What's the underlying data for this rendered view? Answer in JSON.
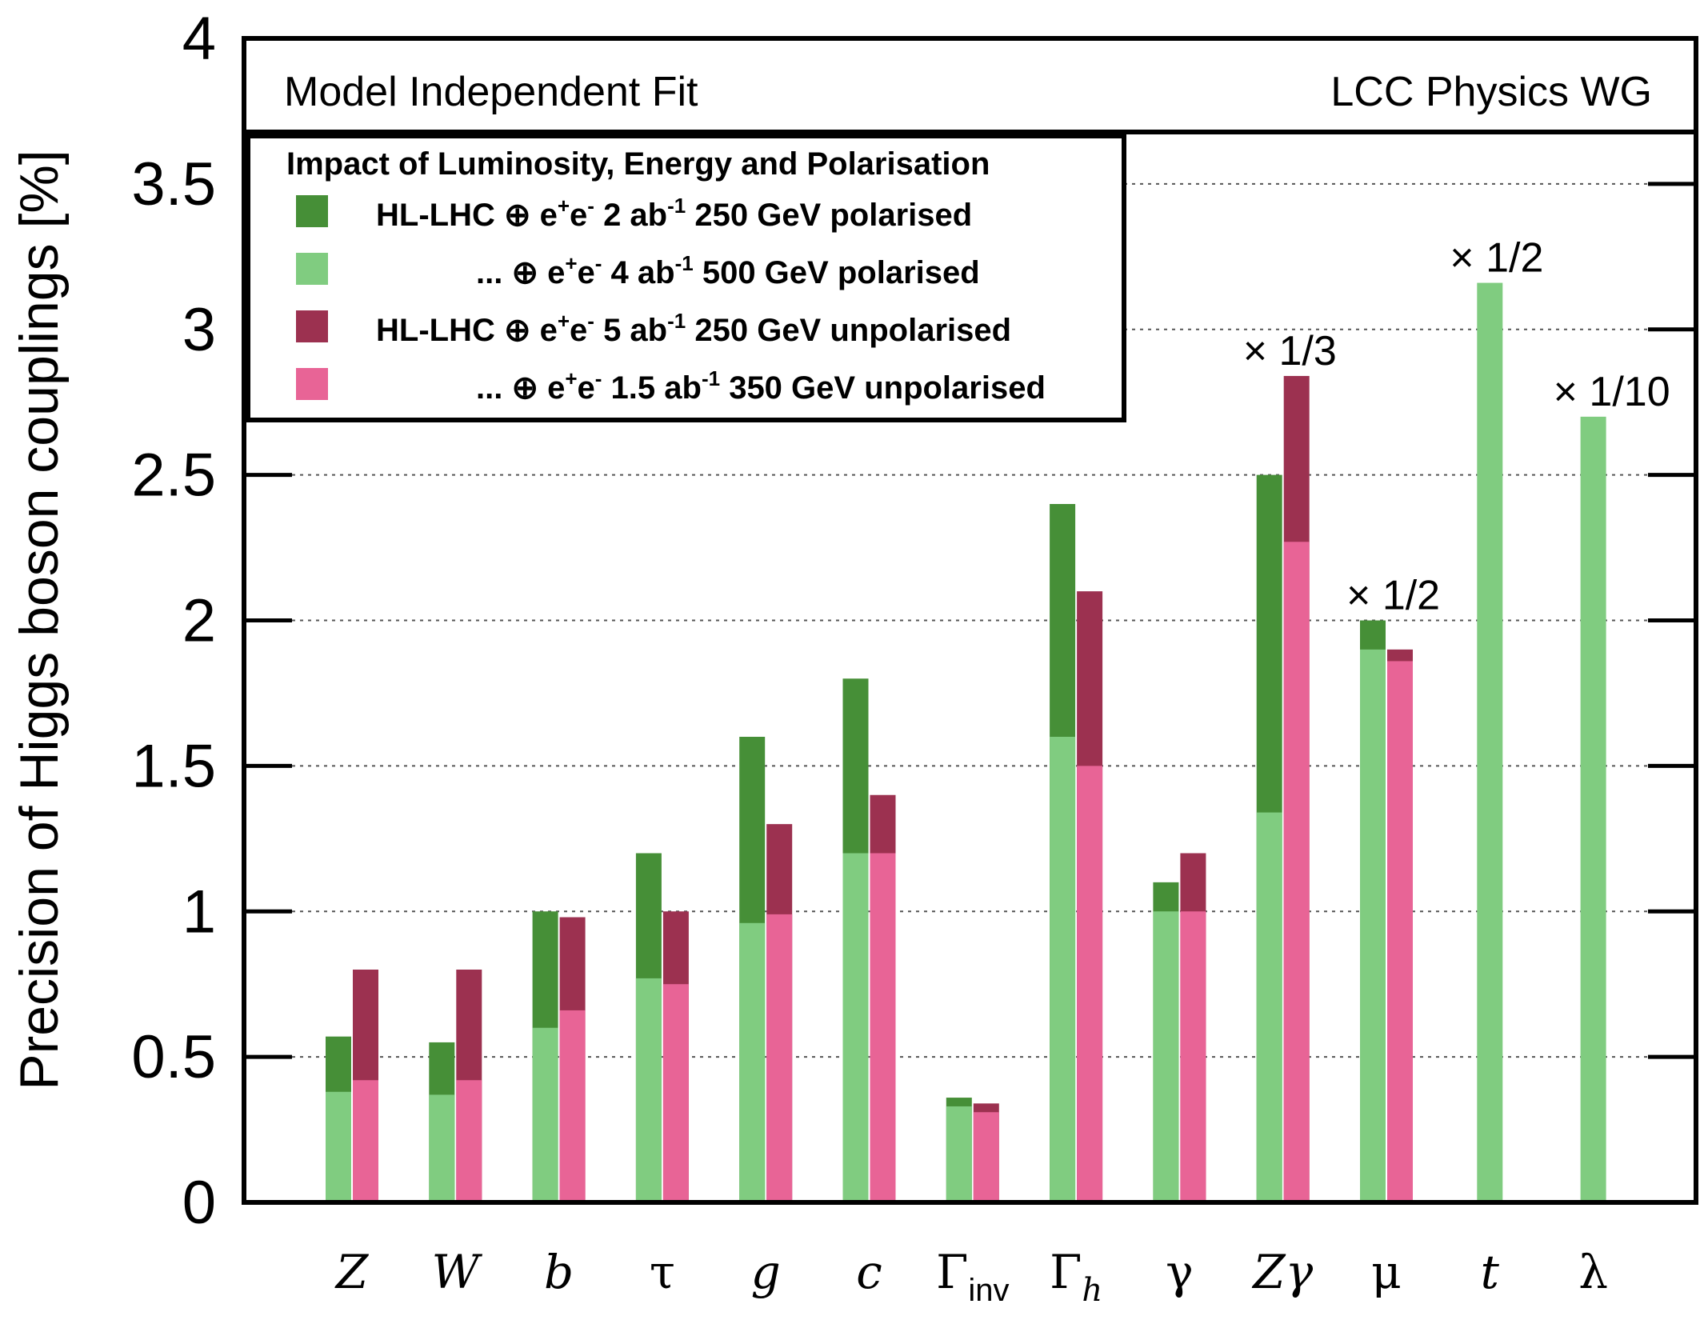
{
  "chart_data": {
    "type": "bar",
    "stacked_overlay": true,
    "ylabel": "Precision of Higgs boson couplings [%]",
    "ylim": [
      0,
      4
    ],
    "y_ticks": [
      "0",
      "0.5",
      "1",
      "1.5",
      "2",
      "2.5",
      "3",
      "3.5",
      "4"
    ],
    "grid": "horizontal dotted",
    "header_left": "Model Independent Fit",
    "header_right": "LCC Physics WG",
    "legend_title": "Impact of Luminosity, Energy and Polarisation",
    "legend_position": "top-left",
    "categories": [
      {
        "id": "Z",
        "label": "Z"
      },
      {
        "id": "W",
        "label": "W"
      },
      {
        "id": "b",
        "label": "b"
      },
      {
        "id": "tau",
        "label": "τ"
      },
      {
        "id": "g",
        "label": "g"
      },
      {
        "id": "c",
        "label": "c"
      },
      {
        "id": "Gamma_inv",
        "label": "Γ",
        "sub": "inv"
      },
      {
        "id": "Gamma_h",
        "label": "Γ",
        "sub": "h"
      },
      {
        "id": "gamma",
        "label": "γ"
      },
      {
        "id": "Zgamma",
        "label": "Zγ"
      },
      {
        "id": "mu",
        "label": "μ"
      },
      {
        "id": "t",
        "label": "t"
      },
      {
        "id": "lambda",
        "label": "λ"
      }
    ],
    "series": [
      {
        "name": "HL-LHC ⊕ e⁺e⁻ 2 ab⁻¹ 250 GeV polarised",
        "color": "#468f37",
        "values": [
          0.57,
          0.55,
          1.0,
          1.2,
          1.6,
          1.8,
          0.36,
          2.4,
          1.1,
          2.5,
          2.0,
          null,
          null
        ]
      },
      {
        "name": "... ⊕ e⁺e⁻ 4 ab⁻¹ 500 GeV polarised",
        "color": "#80cc80",
        "values": [
          0.38,
          0.37,
          0.6,
          0.77,
          0.96,
          1.2,
          0.33,
          1.6,
          1.0,
          1.34,
          1.9,
          3.16,
          2.7
        ]
      },
      {
        "name": "HL-LHC ⊕ e⁺e⁻ 5 ab⁻¹ 250 GeV unpolarised",
        "color": "#9c3150",
        "values": [
          0.8,
          0.8,
          0.98,
          1.0,
          1.3,
          1.4,
          0.34,
          2.1,
          1.2,
          2.84,
          1.9,
          null,
          null
        ]
      },
      {
        "name": "... ⊕ e⁺e⁻ 1.5 ab⁻¹ 350 GeV unpolarised",
        "color": "#e86496",
        "values": [
          0.42,
          0.42,
          0.66,
          0.75,
          0.99,
          1.2,
          0.31,
          1.5,
          1.0,
          2.27,
          1.86,
          null,
          null
        ]
      }
    ],
    "legend": [
      {
        "series": 0,
        "parts": [
          "HL-LHC ⊕ e",
          "+",
          "e",
          "-",
          " 2 ab",
          "-1",
          " 250 GeV polarised"
        ]
      },
      {
        "series": 1,
        "parts": [
          "... ⊕ e",
          "+",
          "e",
          "-",
          " 4 ab",
          "-1",
          " 500 GeV polarised"
        ]
      },
      {
        "series": 2,
        "parts": [
          "HL-LHC ⊕ e",
          "+",
          "e",
          "-",
          " 5 ab",
          "-1",
          " 250 GeV unpolarised"
        ]
      },
      {
        "series": 3,
        "parts": [
          "... ⊕ e",
          "+",
          "e",
          "-",
          " 1.5 ab",
          "-1",
          " 350 GeV unpolarised"
        ]
      }
    ],
    "annotations": [
      {
        "category": "Zgamma",
        "text": "× 1/3"
      },
      {
        "category": "mu",
        "text": "× 1/2"
      },
      {
        "category": "t",
        "text": "× 1/2"
      },
      {
        "category": "lambda",
        "text": "× 1/10"
      }
    ]
  }
}
